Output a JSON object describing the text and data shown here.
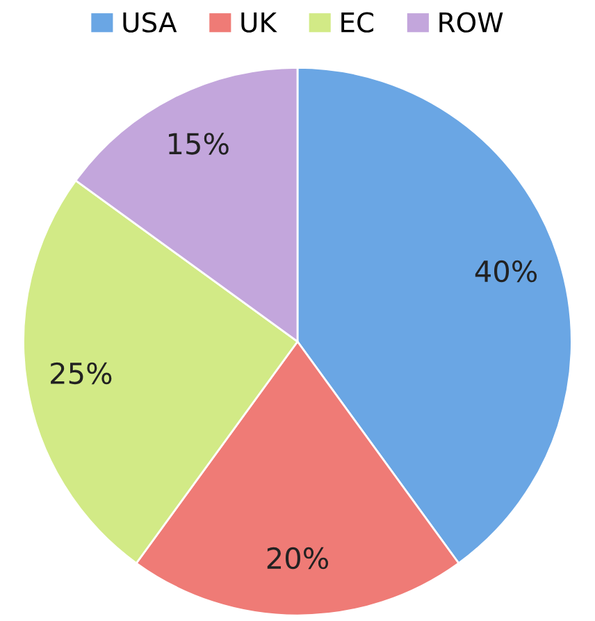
{
  "chart_data": {
    "type": "pie",
    "categories": [
      "USA",
      "UK",
      "EC",
      "ROW"
    ],
    "values": [
      40,
      20,
      25,
      15
    ],
    "value_labels": [
      "40%",
      "20%",
      "25%",
      "15%"
    ],
    "colors": [
      "#6aa6e4",
      "#ef7b76",
      "#d2ea86",
      "#c3a6dc"
    ],
    "legend": "top"
  }
}
